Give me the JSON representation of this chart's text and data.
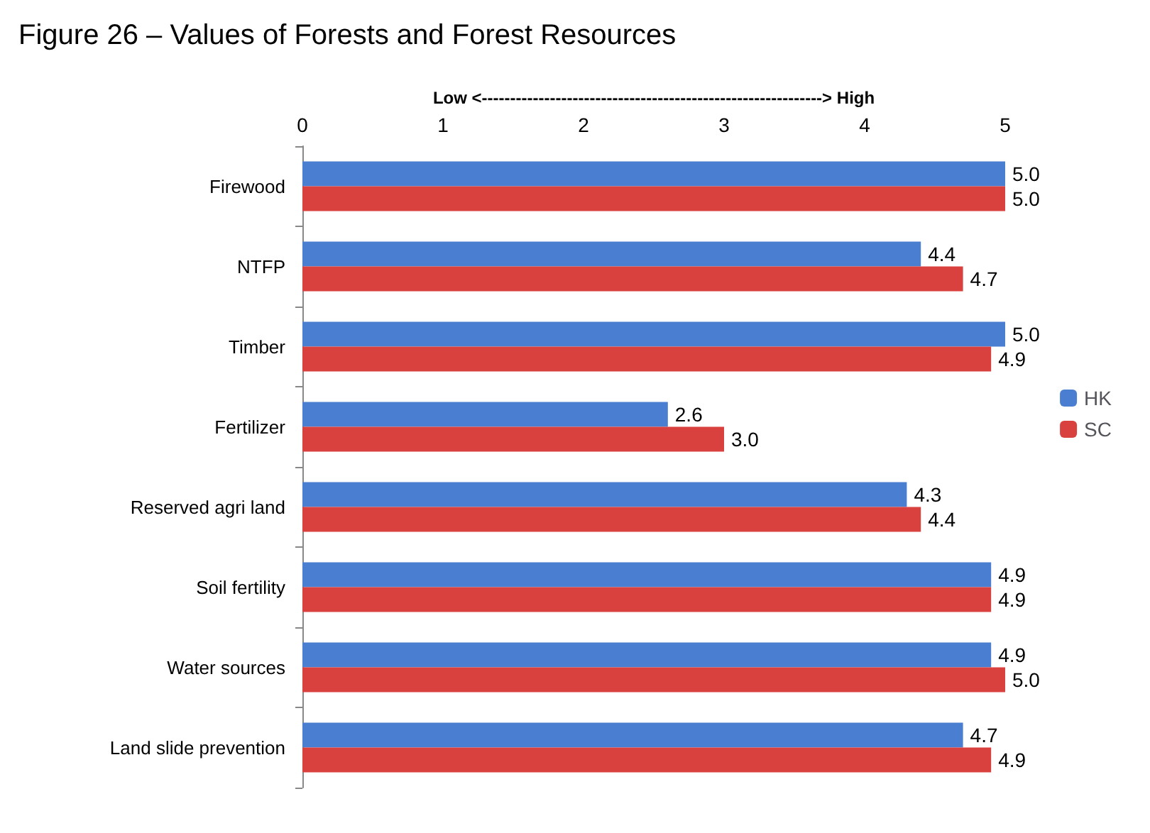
{
  "chart_data": {
    "type": "bar",
    "orientation": "horizontal",
    "title": "Figure 26 – Values of Forests and Forest Resources",
    "xlabel": "Low <------------------------------------------------------------> High",
    "categories": [
      "Firewood",
      "NTFP",
      "Timber",
      "Fertilizer",
      "Reserved agri land",
      "Soil fertility",
      "Water sources",
      "Land slide prevention"
    ],
    "series": [
      {
        "name": "HK",
        "color": "#4a7ed0",
        "values": [
          5.0,
          4.4,
          5.0,
          2.6,
          4.3,
          4.9,
          4.9,
          4.7
        ],
        "value_labels": [
          "5.0",
          "4.4",
          "5.0",
          "2.6",
          "4.3",
          "4.9",
          "4.9",
          "4.7"
        ]
      },
      {
        "name": "SC",
        "color": "#d9413f",
        "values": [
          5.0,
          4.7,
          4.9,
          3.0,
          4.4,
          4.9,
          5.0,
          4.9
        ],
        "value_labels": [
          "5.0",
          "4.7",
          "4.9",
          "3.0",
          "4.4",
          "4.9",
          "5.0",
          "4.9"
        ]
      }
    ],
    "xlim": [
      0,
      5
    ],
    "xticks": [
      0,
      1,
      2,
      3,
      4,
      5
    ],
    "grid": false,
    "legend": "right"
  }
}
